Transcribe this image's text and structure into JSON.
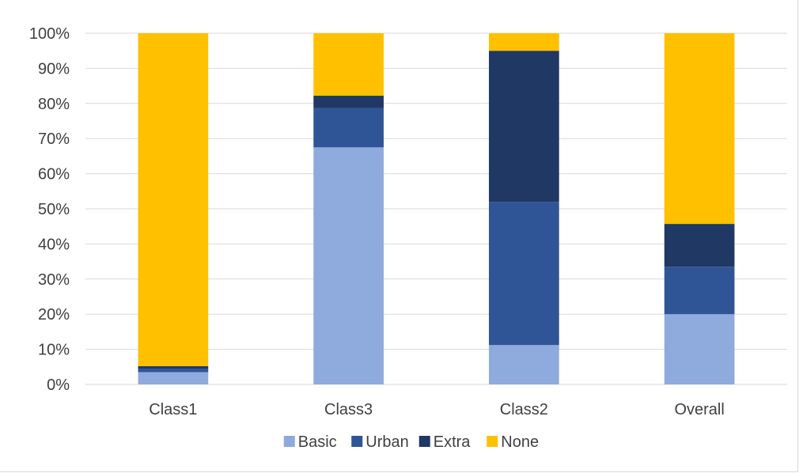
{
  "chart_data": {
    "type": "bar",
    "stacked": true,
    "percent": true,
    "categories": [
      "Class1",
      "Class3",
      "Class2",
      "Overall"
    ],
    "series": [
      {
        "name": "Basic",
        "color": "#8faadc",
        "values": [
          3.5,
          67.5,
          11.2,
          20.0
        ]
      },
      {
        "name": "Urban",
        "color": "#2f5597",
        "values": [
          1.0,
          11.2,
          40.8,
          13.5
        ]
      },
      {
        "name": "Extra",
        "color": "#203864",
        "values": [
          0.7,
          3.5,
          43.0,
          12.2
        ]
      },
      {
        "name": "None",
        "color": "#ffc000",
        "values": [
          94.8,
          17.8,
          5.0,
          54.3
        ]
      }
    ],
    "y_ticks": [
      "0%",
      "10%",
      "20%",
      "30%",
      "40%",
      "50%",
      "60%",
      "70%",
      "80%",
      "90%",
      "100%"
    ],
    "ylim": [
      0,
      100
    ],
    "grid": true,
    "legend_position": "bottom"
  }
}
